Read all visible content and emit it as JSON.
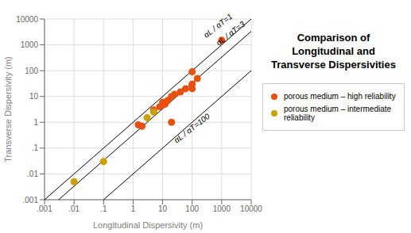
{
  "chart_data": {
    "type": "scatter",
    "title": "Comparison of\nLongitudinal and\nTransverse Dispersivities",
    "xlabel": "Longitudinal Dispersivity (m)",
    "ylabel": "Transverse Dispersivity (m)",
    "log": true,
    "grid": true,
    "legend": "right",
    "xlim": [
      0.001,
      10000
    ],
    "ylim": [
      0.001,
      10000
    ],
    "xticks": [
      {
        "value": 0.001,
        "label": ".001"
      },
      {
        "value": 0.01,
        "label": ".01"
      },
      {
        "value": 0.1,
        "label": ".1"
      },
      1,
      10,
      100,
      1000,
      10000
    ],
    "yticks": [
      {
        "value": 0.001,
        "label": ".001"
      },
      {
        "value": 0.01,
        "label": ".01"
      },
      {
        "value": 0.1,
        "label": ".1"
      },
      1,
      10,
      100,
      1000,
      10000
    ],
    "series": [
      {
        "name": "porous medium – high reliability",
        "color": "#E85010",
        "marker": "circle",
        "x": [
          1000,
          100,
          150,
          100,
          100,
          60,
          40,
          25,
          20,
          15,
          12,
          10,
          8,
          5,
          20,
          2,
          1.5
        ],
        "y": [
          1500,
          90,
          50,
          30,
          20,
          20,
          15,
          12,
          10,
          7,
          5,
          6,
          4,
          3,
          1,
          0.7,
          0.8
        ]
      },
      {
        "name": "porous medium – intermediate reliability",
        "color": "#CCA000",
        "marker": "circle",
        "x": [
          0.01,
          0.1,
          3,
          5
        ],
        "y": [
          0.005,
          0.03,
          1.5,
          2.5
        ]
      }
    ],
    "ratio_lines": [
      1,
      3,
      100
    ],
    "annotations": [
      {
        "text": "αL / αT=1",
        "x": 300,
        "y": 1800
      },
      {
        "text": "αL / αT=3",
        "x": 800,
        "y": 900
      },
      {
        "text": "αL / αT=100",
        "x": 30,
        "y": 0.15
      }
    ]
  }
}
